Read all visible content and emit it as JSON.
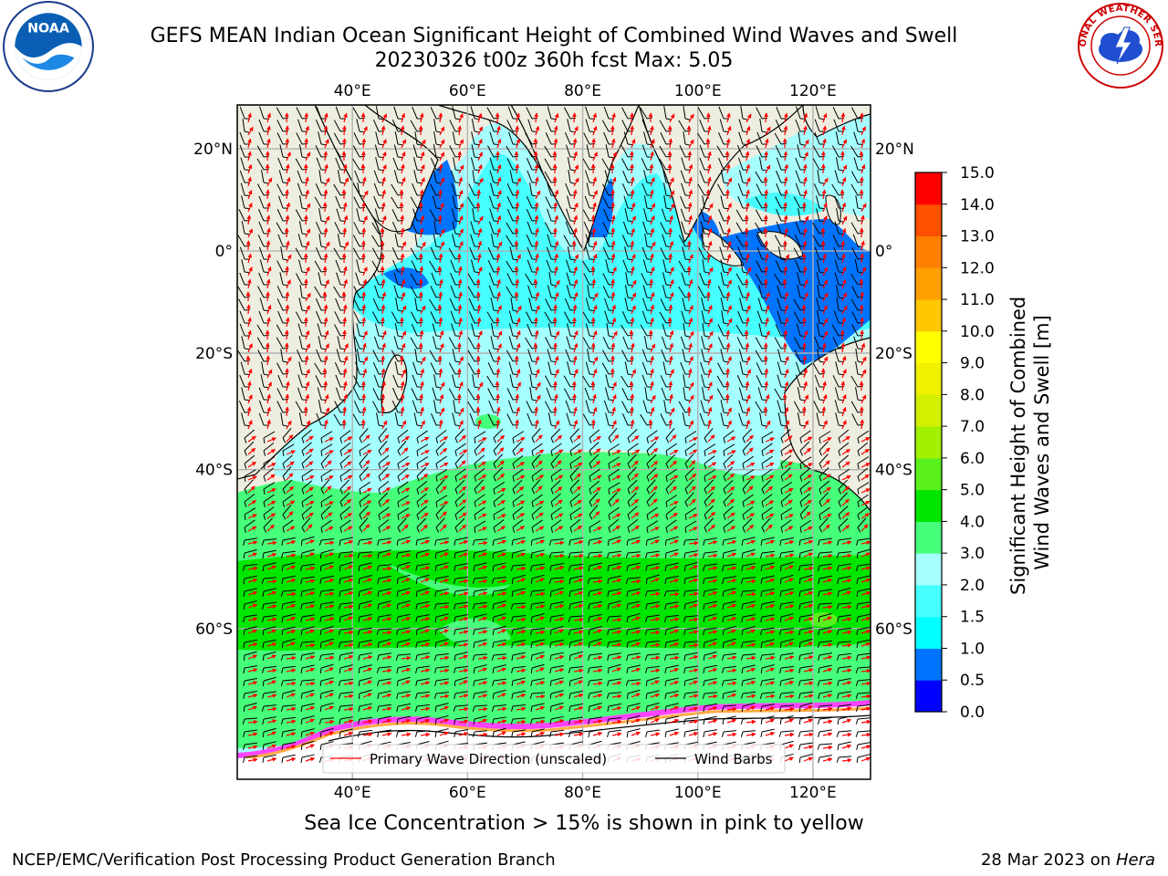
{
  "title": {
    "line1": "GEFS MEAN Indian Ocean Significant Height of Combined Wind Waves and Swell",
    "line2": "20230326 t00z 360h fcst   Max: 5.05"
  },
  "logos": {
    "left": "noaa-logo",
    "right": "national-weather-service-logo",
    "left_text": "NOAA",
    "right_text": "NATIONAL WEATHER SERVICE"
  },
  "map": {
    "lon_ticks": [
      "40°E",
      "60°E",
      "80°E",
      "100°E",
      "120°E"
    ],
    "lat_ticks_left": [
      "20°N",
      "0°",
      "20°S",
      "40°S",
      "60°S"
    ],
    "lat_ticks_right": [
      "20°N",
      "0°",
      "20°S",
      "40°S",
      "60°S"
    ],
    "lon_range": [
      20,
      130
    ],
    "lat_range": [
      -72,
      28
    ],
    "ocean_colors": {
      "blue": "#0074ff",
      "cyan": "#00ffff",
      "light_cyan": "#a6ffff",
      "pale_green": "#46ff7a",
      "green": "#00e600",
      "bright_green": "#5af01e"
    },
    "land_color": "#eeeee0",
    "ice_colors": [
      "#ff44ff",
      "#ff88cc",
      "#ffaa44",
      "#ffee66"
    ],
    "wave_arrow_color": "#ff0000",
    "wind_barb_color": "#000000"
  },
  "legend": {
    "items": [
      {
        "label": "Primary Wave Direction (unscaled)",
        "color": "#ff0000"
      },
      {
        "label": "Wind Barbs",
        "color": "#000000"
      }
    ]
  },
  "colorbar": {
    "label_line1": "Significant Height of Combined",
    "label_line2": "Wind Waves and Swell [m]",
    "ticks": [
      "0.0",
      "0.5",
      "1.0",
      "1.5",
      "2.0",
      "3.0",
      "4.0",
      "5.0",
      "6.0",
      "7.0",
      "8.0",
      "9.0",
      "10.0",
      "11.0",
      "12.0",
      "13.0",
      "14.0",
      "15.0"
    ],
    "colors": [
      "#0000ff",
      "#0074ff",
      "#00ffff",
      "#46ffff",
      "#a6ffff",
      "#46ff7a",
      "#00e600",
      "#5af01e",
      "#a0f000",
      "#d2f000",
      "#f0f000",
      "#ffff00",
      "#ffc800",
      "#ffa000",
      "#ff8000",
      "#ff5000",
      "#ff0000"
    ]
  },
  "note": "Sea Ice Concentration > 15% is shown in pink to yellow",
  "footer": {
    "left": "NCEP/EMC/Verification Post Processing Product Generation Branch",
    "right_prefix": "28 Mar 2023 on ",
    "right_machine": "Hera"
  }
}
